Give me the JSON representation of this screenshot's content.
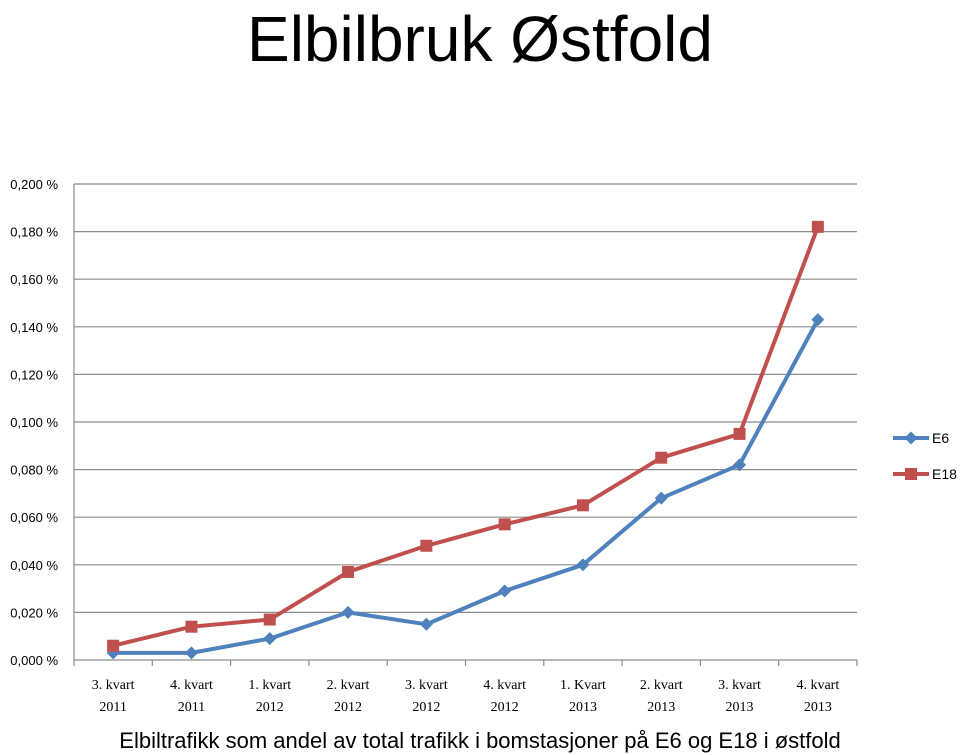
{
  "chart_data": {
    "type": "line",
    "title": "Elbilbruk Østfold",
    "xlabel": "Elbiltrafikk som andel av total trafikk i bomstasjoner på E6 og E18 i østfold",
    "ylabel": "",
    "ylim": [
      0,
      0.2
    ],
    "y_ticks": [
      "0,000 %",
      "0,020 %",
      "0,040 %",
      "0,060 %",
      "0,080 %",
      "0,100 %",
      "0,120 %",
      "0,140 %",
      "0,160 %",
      "0,180 %",
      "0,200 %"
    ],
    "categories": [
      [
        "3. kvart",
        "2011"
      ],
      [
        "4. kvart",
        "2011"
      ],
      [
        "1. kvart",
        "2012"
      ],
      [
        "2. kvart",
        "2012"
      ],
      [
        "3. kvart",
        "2012"
      ],
      [
        "4. kvart",
        "2012"
      ],
      [
        "1. Kvart",
        "2013"
      ],
      [
        "2. kvart",
        "2013"
      ],
      [
        "3. kvart",
        "2013"
      ],
      [
        "4. kvart",
        "2013"
      ]
    ],
    "series": [
      {
        "name": "E6",
        "color": "#4f81bd",
        "marker": "diamond",
        "values": [
          0.003,
          0.003,
          0.009,
          0.02,
          0.015,
          0.029,
          0.04,
          0.068,
          0.082,
          0.143
        ]
      },
      {
        "name": "E18",
        "color": "#c0504d",
        "marker": "square",
        "values": [
          0.006,
          0.014,
          0.017,
          0.037,
          0.048,
          0.057,
          0.065,
          0.085,
          0.095,
          0.182
        ]
      }
    ],
    "grid": true,
    "legend": "right"
  }
}
